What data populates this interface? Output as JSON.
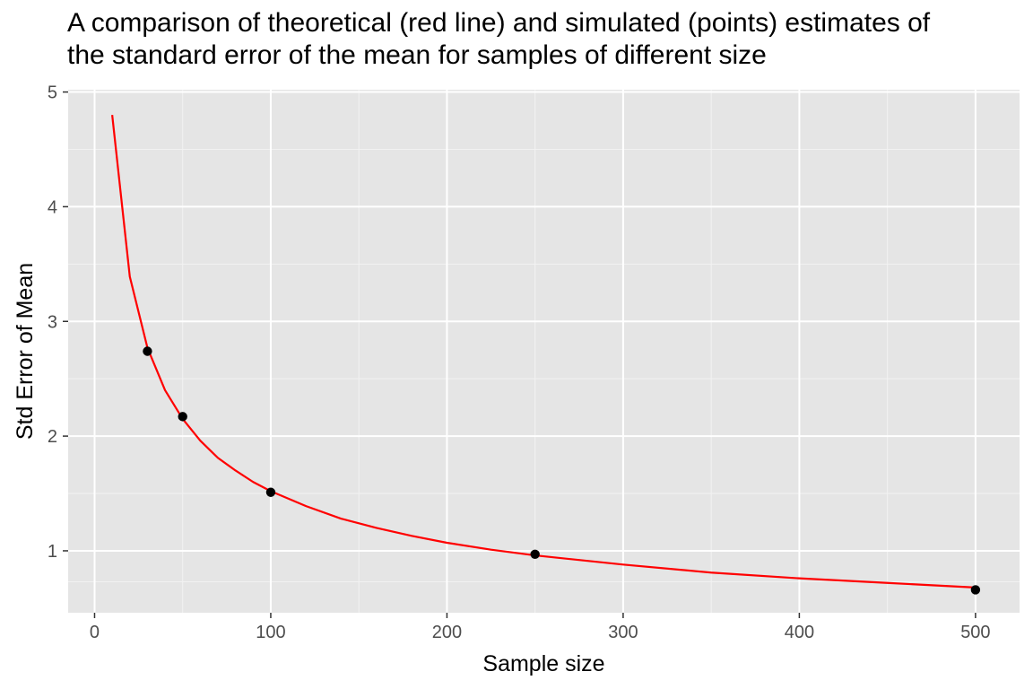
{
  "chart_data": {
    "type": "line",
    "title_lines": [
      "A comparison of theoretical (red line) and simulated (points) estimates of",
      "the standard error of the mean for samples of different size"
    ],
    "xlabel": "Sample size",
    "ylabel": "Std Error of Mean",
    "xlim": [
      -15,
      525
    ],
    "ylim": [
      0.46,
      5.02
    ],
    "x_ticks": [
      0,
      100,
      200,
      300,
      400,
      500
    ],
    "y_ticks": [
      1,
      2,
      3,
      4,
      5
    ],
    "grid": true,
    "background_color": "#e5e5e5",
    "series": [
      {
        "kind": "line",
        "color": "#ff0000",
        "x": [
          10,
          20,
          30,
          40,
          50,
          60,
          70,
          80,
          90,
          100,
          120,
          140,
          160,
          180,
          200,
          225,
          250,
          275,
          300,
          350,
          400,
          450,
          500
        ],
        "y": [
          4.8,
          3.39,
          2.77,
          2.4,
          2.15,
          1.96,
          1.81,
          1.7,
          1.6,
          1.52,
          1.39,
          1.28,
          1.2,
          1.13,
          1.07,
          1.01,
          0.96,
          0.92,
          0.88,
          0.81,
          0.76,
          0.72,
          0.68
        ]
      },
      {
        "kind": "points",
        "color": "#000000",
        "x": [
          30,
          50,
          100,
          250,
          500
        ],
        "y": [
          2.74,
          2.17,
          1.51,
          0.97,
          0.66
        ]
      }
    ]
  }
}
